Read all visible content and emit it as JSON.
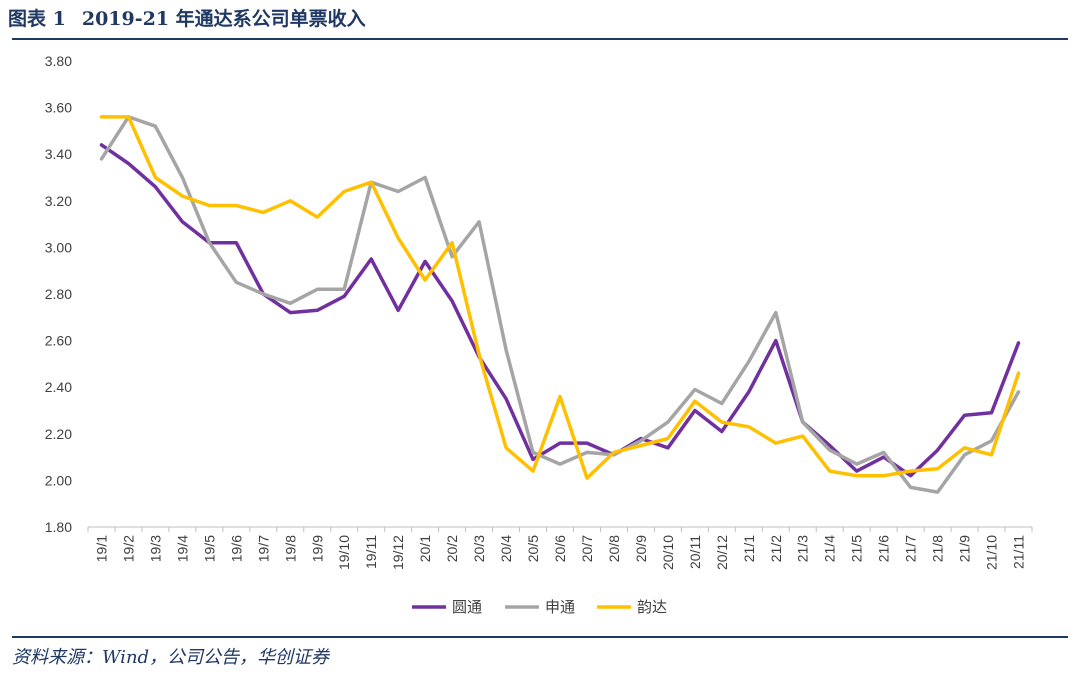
{
  "header": {
    "figure_label": "图表 1",
    "title": "2019-21 年通达系公司单票收入"
  },
  "footer": {
    "source": "资料来源：Wind，公司公告，华创证券"
  },
  "colors": {
    "title": "#1f3864",
    "yuantong": "#7030a0",
    "shentong": "#a5a5a5",
    "yunda": "#ffc000",
    "axis": "#bfbfbf",
    "text": "#404040"
  },
  "chart_data": {
    "type": "line",
    "title": "2019-21 年通达系公司单票收入",
    "xlabel": "",
    "ylabel": "",
    "ylim": [
      1.8,
      3.8
    ],
    "yticks": [
      "1.80",
      "2.00",
      "2.20",
      "2.40",
      "2.60",
      "2.80",
      "3.00",
      "3.20",
      "3.40",
      "3.60",
      "3.80"
    ],
    "grid": false,
    "legend": "bottom",
    "categories": [
      "19/1",
      "19/2",
      "19/3",
      "19/4",
      "19/5",
      "19/6",
      "19/7",
      "19/8",
      "19/9",
      "19/10",
      "19/11",
      "19/12",
      "20/1",
      "20/2",
      "20/3",
      "20/4",
      "20/5",
      "20/6",
      "20/7",
      "20/8",
      "20/9",
      "20/10",
      "20/11",
      "20/12",
      "21/1",
      "21/2",
      "21/3",
      "21/4",
      "21/5",
      "21/6",
      "21/7",
      "21/8",
      "21/9",
      "21/10",
      "21/11"
    ],
    "series": [
      {
        "name": "圆通",
        "color": "#7030a0",
        "values": [
          3.44,
          3.36,
          3.26,
          3.11,
          3.02,
          3.02,
          2.8,
          2.72,
          2.73,
          2.79,
          2.95,
          2.73,
          2.94,
          2.77,
          2.53,
          2.35,
          2.09,
          2.16,
          2.16,
          2.11,
          2.18,
          2.14,
          2.3,
          2.21,
          2.38,
          2.6,
          2.25,
          2.15,
          2.04,
          2.1,
          2.02,
          2.13,
          2.28,
          2.29,
          2.59
        ]
      },
      {
        "name": "申通",
        "color": "#a5a5a5",
        "values": [
          3.38,
          3.56,
          3.52,
          3.3,
          3.02,
          2.85,
          2.8,
          2.76,
          2.82,
          2.82,
          3.28,
          3.24,
          3.3,
          2.96,
          3.11,
          2.56,
          2.12,
          2.07,
          2.12,
          2.11,
          2.17,
          2.25,
          2.39,
          2.33,
          2.51,
          2.72,
          2.25,
          2.13,
          2.07,
          2.12,
          1.97,
          1.95,
          2.11,
          2.17,
          2.38
        ]
      },
      {
        "name": "韵达",
        "color": "#ffc000",
        "values": [
          3.56,
          3.56,
          3.3,
          3.22,
          3.18,
          3.18,
          3.15,
          3.2,
          3.13,
          3.24,
          3.28,
          3.04,
          2.86,
          3.02,
          2.54,
          2.14,
          2.04,
          2.36,
          2.01,
          2.12,
          2.15,
          2.18,
          2.34,
          2.25,
          2.23,
          2.16,
          2.19,
          2.04,
          2.02,
          2.02,
          2.04,
          2.05,
          2.14,
          2.11,
          2.46
        ]
      }
    ]
  }
}
